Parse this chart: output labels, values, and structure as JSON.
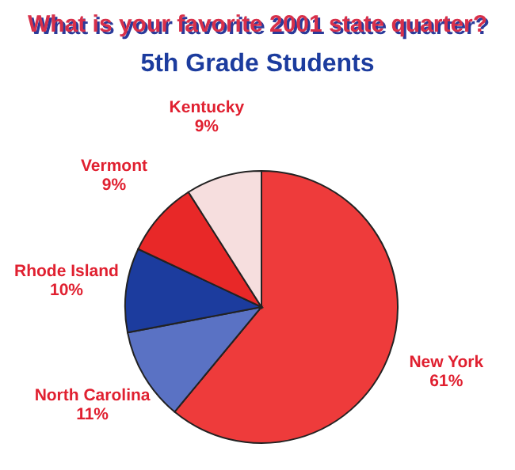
{
  "chart_data": {
    "type": "pie",
    "title": "What is your favorite 2001 state quarter?",
    "subtitle": "5th Grade Students",
    "categories": [
      "New York",
      "North Carolina",
      "Rhode Island",
      "Vermont",
      "Kentucky"
    ],
    "values": [
      61,
      11,
      10,
      9,
      9
    ],
    "colors": [
      "#ee3b3b",
      "#5a72c4",
      "#1c3c9e",
      "#e82828",
      "#f6dede"
    ],
    "value_labels": [
      "61%",
      "11%",
      "10%",
      "9%",
      "9%"
    ]
  }
}
